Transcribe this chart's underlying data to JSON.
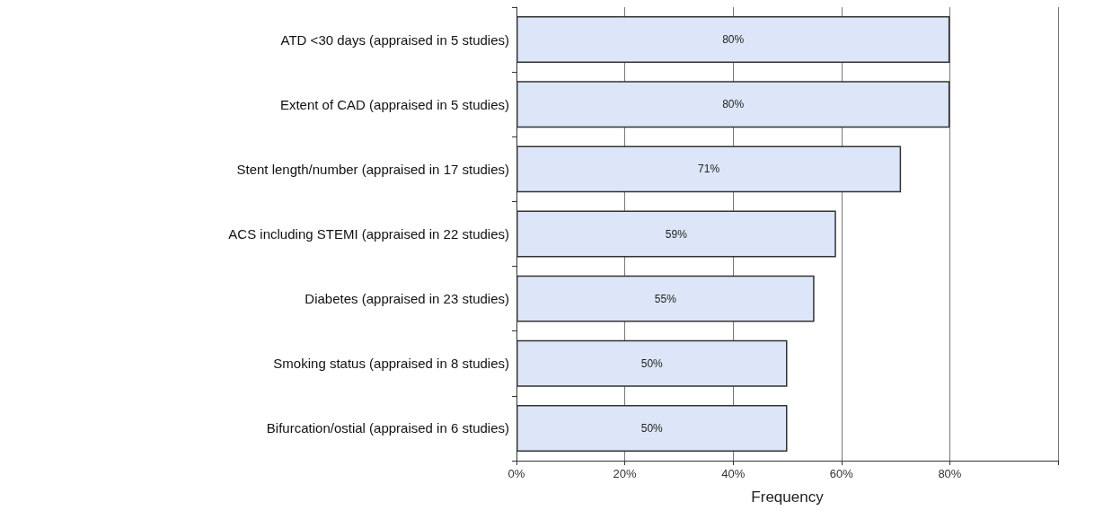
{
  "chart_data": {
    "type": "bar",
    "orientation": "horizontal",
    "xlabel": "Frequency",
    "categories": [
      "ATD <30 days (appraised in 5 studies)",
      "Extent of CAD (appraised in 5 studies)",
      "Stent length/number (appraised in 17 studies)",
      "ACS including STEMI (appraised in 22 studies)",
      "Diabetes (appraised in 23 studies)",
      "Smoking status (appraised in 8 studies)",
      "Bifurcation/ostial (appraised in 6 studies)"
    ],
    "values": [
      80,
      80,
      71,
      59,
      55,
      50,
      50
    ],
    "value_labels": [
      "80%",
      "80%",
      "71%",
      "59%",
      "55%",
      "50%",
      "50%"
    ],
    "color": "#dce6f8",
    "xlim": [
      0,
      100
    ],
    "xticks": [
      {
        "value": 0,
        "label": "0%"
      },
      {
        "value": 20,
        "label": "20%"
      },
      {
        "value": 40,
        "label": "40%"
      },
      {
        "value": 60,
        "label": "60%"
      },
      {
        "value": 80,
        "label": "80%"
      },
      {
        "value": 100,
        "label": null
      }
    ],
    "grid": "x"
  }
}
